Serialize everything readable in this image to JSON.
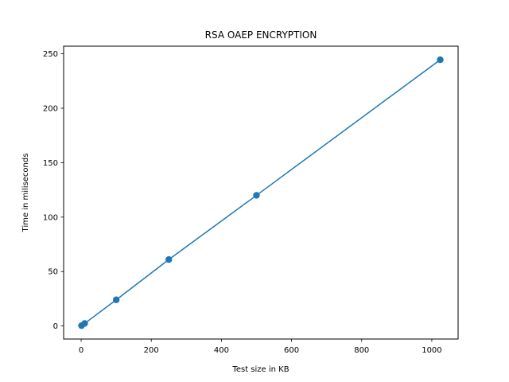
{
  "chart_data": {
    "type": "line",
    "title": "RSA OAEP ENCRYPTION",
    "xlabel": "Test size in KB",
    "ylabel": "Time in miliseconds",
    "xlim": [
      -50,
      1075
    ],
    "ylim": [
      -12,
      257
    ],
    "xticks": [
      0,
      200,
      400,
      600,
      800,
      1000
    ],
    "yticks": [
      0,
      50,
      100,
      150,
      200,
      250
    ],
    "grid": false,
    "legend": "none",
    "series": [
      {
        "color": "#1f77b4",
        "marker": "circle",
        "x": [
          1,
          10,
          100,
          250,
          500,
          1024
        ],
        "y": [
          0.3,
          2.3,
          24,
          61,
          120,
          244.5
        ]
      }
    ]
  }
}
